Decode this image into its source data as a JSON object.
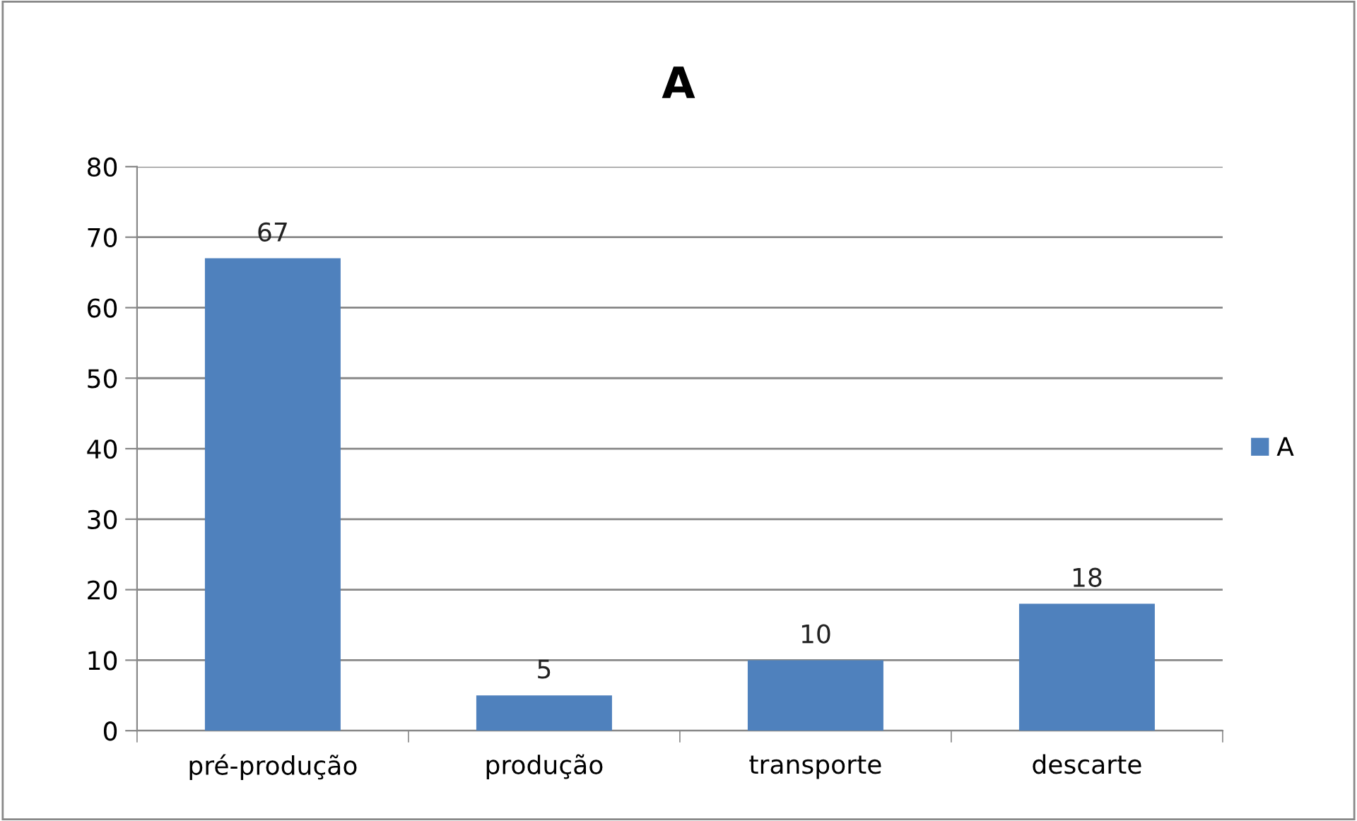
{
  "chart_data": {
    "type": "bar",
    "title": "A",
    "categories": [
      "pré-produção",
      "produção",
      "transporte",
      "descarte"
    ],
    "series": [
      {
        "name": "A",
        "color": "#4f81bd",
        "values": [
          67,
          5,
          10,
          18
        ]
      }
    ],
    "ylim": [
      0,
      80
    ],
    "yticks": [
      0,
      10,
      20,
      30,
      40,
      50,
      60,
      70,
      80
    ],
    "grid": "y",
    "legend": "right",
    "data_labels": true
  }
}
